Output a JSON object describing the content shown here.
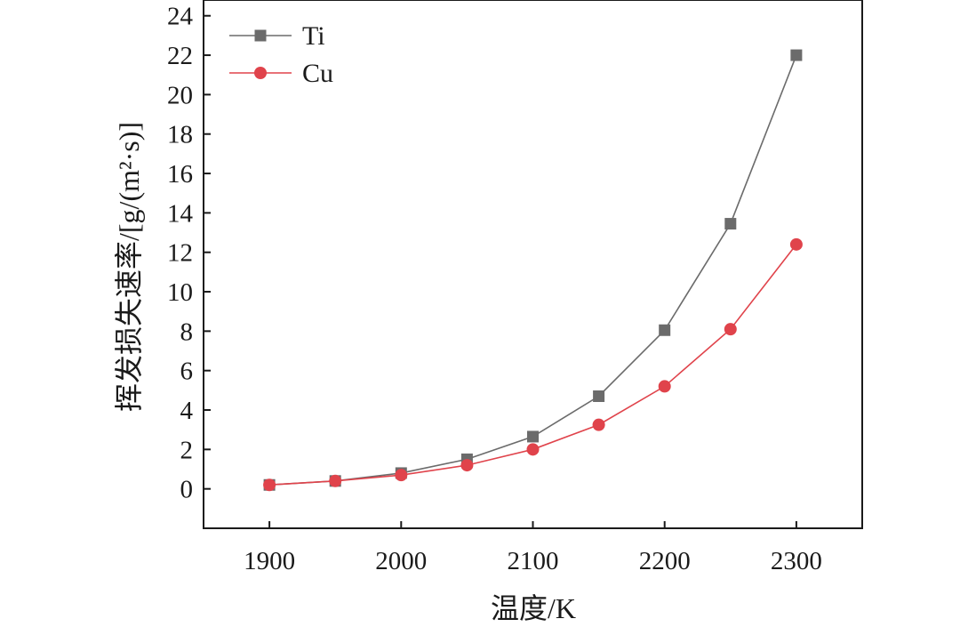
{
  "chart_data": {
    "type": "line",
    "xlabel": "温度/K",
    "ylabel": "挥发损失速率/[g/(m²·s)]",
    "xlim": [
      1850,
      2350
    ],
    "ylim": [
      -2,
      24.8
    ],
    "x_ticks": [
      1900,
      2000,
      2100,
      2200,
      2300
    ],
    "y_ticks": [
      0,
      2,
      4,
      6,
      8,
      10,
      12,
      14,
      16,
      18,
      20,
      22,
      24
    ],
    "grid": false,
    "legend_position": "top-left",
    "series": [
      {
        "name": "Ti",
        "marker": "square",
        "color": "#6b6b6b",
        "x": [
          1900,
          1950,
          2000,
          2050,
          2100,
          2150,
          2200,
          2250,
          2300
        ],
        "y": [
          0.2,
          0.4,
          0.8,
          1.5,
          2.65,
          4.7,
          8.05,
          13.45,
          22.0
        ]
      },
      {
        "name": "Cu",
        "marker": "circle",
        "color": "#e0434b",
        "x": [
          1900,
          1950,
          2000,
          2050,
          2100,
          2150,
          2200,
          2250,
          2300
        ],
        "y": [
          0.2,
          0.4,
          0.7,
          1.2,
          2.0,
          3.25,
          5.2,
          8.1,
          12.4
        ]
      }
    ]
  }
}
